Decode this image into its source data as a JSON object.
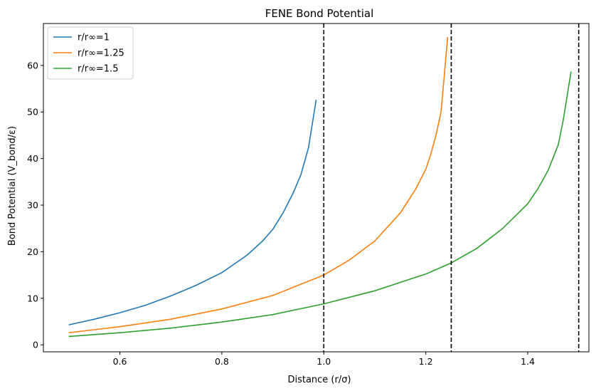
{
  "chart_data": {
    "type": "line",
    "title": "FENE Bond Potential",
    "xlabel": "Distance (r/σ)",
    "ylabel": "Bond Potential (V_bond/ε)",
    "xlim": [
      0.45,
      1.52
    ],
    "ylim": [
      -1.5,
      69
    ],
    "xticks": [
      0.6,
      0.8,
      1.0,
      1.2,
      1.4
    ],
    "yticks": [
      0,
      10,
      20,
      30,
      40,
      50,
      60
    ],
    "legend_position": "top-left",
    "grid": false,
    "vlines": [
      1.0,
      1.25,
      1.5
    ],
    "series": [
      {
        "name": "r/r∞=1",
        "color": "#1f77b4",
        "x": [
          0.5,
          0.55,
          0.6,
          0.65,
          0.7,
          0.75,
          0.8,
          0.85,
          0.88,
          0.9,
          0.92,
          0.94,
          0.955,
          0.97,
          0.985
        ],
        "y": [
          4.3,
          5.5,
          6.9,
          8.5,
          10.5,
          12.8,
          15.5,
          19.3,
          22.3,
          24.8,
          28.3,
          32.6,
          36.5,
          42.3,
          52.6
        ]
      },
      {
        "name": "r/r∞=1.25",
        "color": "#ff7f0e",
        "x": [
          0.5,
          0.6,
          0.7,
          0.8,
          0.9,
          1.0,
          1.05,
          1.1,
          1.15,
          1.18,
          1.2,
          1.21,
          1.22,
          1.23,
          1.243
        ],
        "y": [
          2.6,
          3.9,
          5.5,
          7.7,
          10.6,
          15.0,
          18.2,
          22.3,
          28.3,
          33.4,
          37.7,
          41.0,
          45.0,
          50.0,
          66.1
        ]
      },
      {
        "name": "r/r∞=1.5",
        "color": "#2ca02c",
        "x": [
          0.5,
          0.6,
          0.7,
          0.8,
          0.9,
          1.0,
          1.1,
          1.2,
          1.25,
          1.3,
          1.35,
          1.4,
          1.42,
          1.44,
          1.46,
          1.47,
          1.485
        ],
        "y": [
          1.8,
          2.6,
          3.6,
          4.9,
          6.5,
          8.8,
          11.6,
          15.2,
          17.6,
          20.7,
          24.9,
          30.3,
          33.5,
          37.5,
          43.0,
          48.5,
          58.7
        ]
      }
    ]
  }
}
